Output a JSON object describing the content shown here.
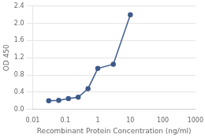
{
  "chart_data": {
    "type": "line",
    "x": [
      0.031,
      0.063,
      0.125,
      0.25,
      0.5,
      1.0,
      3.0,
      10.0
    ],
    "values": [
      0.2,
      0.21,
      0.25,
      0.28,
      0.48,
      0.95,
      1.05,
      2.2
    ],
    "color": "#3d5a8a",
    "marker": "circle",
    "xlabel": "Recombinant Protein Concentration (ng/ml)",
    "ylabel": "OD 450",
    "log": "x",
    "xlim": [
      0.01,
      1000
    ],
    "ylim": [
      0,
      2.4
    ],
    "xticks": [
      0.01,
      0.1,
      1,
      10,
      100,
      1000
    ],
    "yticks": [
      {
        "value": 0,
        "label": "0.0"
      },
      0.4,
      0.8,
      1.2,
      1.6,
      {
        "value": 2.0,
        "label": "2.0"
      },
      2.4
    ],
    "grid": "y"
  }
}
